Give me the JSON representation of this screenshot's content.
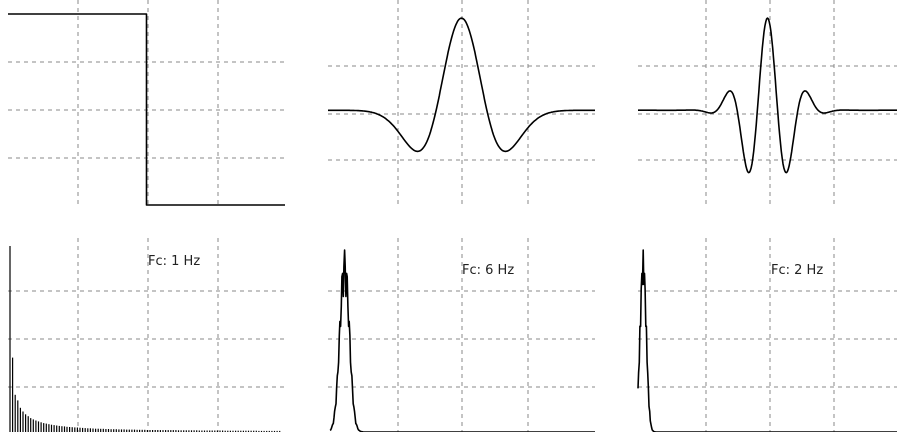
{
  "chart_data": [
    {
      "type": "line",
      "panel": "waveform-step",
      "title": "",
      "xlabel": "",
      "ylabel": "",
      "grid": true,
      "xlim": [
        0,
        1
      ],
      "ylim": [
        -1,
        1
      ],
      "series": [
        {
          "x": [
            0,
            0.5,
            0.5,
            1
          ],
          "y": [
            1,
            1,
            -1,
            -1
          ]
        }
      ]
    },
    {
      "type": "line",
      "panel": "waveform-wavelet-low",
      "title": "",
      "xlabel": "",
      "ylabel": "",
      "grid": true,
      "xlim": [
        -1,
        1
      ],
      "ylim": [
        -1,
        1
      ],
      "function": {
        "kind": "mexican-hat",
        "sigma": 0.19,
        "amplitude": 0.97,
        "baseline": 0.05
      }
    },
    {
      "type": "line",
      "panel": "waveform-wavelet-high",
      "title": "",
      "xlabel": "",
      "ylabel": "",
      "grid": true,
      "xlim": [
        -1,
        1
      ],
      "ylim": [
        -1,
        1
      ],
      "function": {
        "kind": "gabor",
        "sigma": 0.17,
        "frequency": 3.2,
        "amplitude": 0.97,
        "baseline": 0.05
      }
    },
    {
      "type": "bar",
      "panel": "spectrum-1",
      "label": "Fc: 1 Hz",
      "grid": true,
      "xlim": [
        0,
        1
      ],
      "ylim": [
        0,
        1
      ],
      "values": [
        1.0,
        0.4,
        0.2,
        0.17,
        0.13,
        0.11,
        0.095,
        0.085,
        0.075,
        0.068,
        0.062,
        0.057,
        0.052,
        0.048,
        0.045,
        0.042,
        0.039,
        0.037,
        0.035,
        0.033,
        0.031,
        0.03,
        0.028,
        0.027,
        0.026,
        0.025,
        0.024,
        0.023,
        0.022,
        0.021,
        0.02,
        0.02,
        0.019,
        0.018,
        0.018,
        0.017,
        0.017,
        0.016,
        0.016,
        0.015,
        0.015,
        0.015,
        0.014,
        0.014,
        0.014,
        0.013,
        0.013,
        0.013,
        0.013,
        0.012,
        0.012,
        0.012,
        0.012,
        0.011,
        0.011,
        0.011,
        0.011,
        0.011,
        0.01,
        0.01,
        0.01,
        0.01,
        0.01,
        0.01,
        0.01,
        0.009,
        0.009,
        0.009,
        0.009,
        0.009,
        0.009,
        0.009,
        0.009,
        0.008,
        0.008,
        0.008,
        0.008,
        0.008,
        0.008,
        0.008,
        0.008,
        0.008,
        0.008,
        0.007,
        0.007,
        0.007,
        0.007,
        0.007,
        0.007,
        0.007,
        0.007,
        0.007,
        0.007,
        0.007,
        0.007,
        0.007,
        0.006,
        0.006,
        0.006,
        0.006,
        0.006,
        0.006,
        0.006,
        0.006,
        0.006
      ]
    },
    {
      "type": "line",
      "panel": "spectrum-2",
      "label": "Fc: 6 Hz",
      "grid": true,
      "xlim": [
        0,
        1
      ],
      "ylim": [
        0,
        1
      ],
      "peak": {
        "center": 0.055,
        "sigma": 0.018,
        "height": 1.0
      }
    },
    {
      "type": "line",
      "panel": "spectrum-3",
      "label": "Fc: 2 Hz",
      "grid": true,
      "xlim": [
        0,
        1
      ],
      "ylim": [
        0,
        1
      ],
      "peak": {
        "center": 0.02,
        "sigma": 0.012,
        "height": 1.0
      }
    }
  ]
}
